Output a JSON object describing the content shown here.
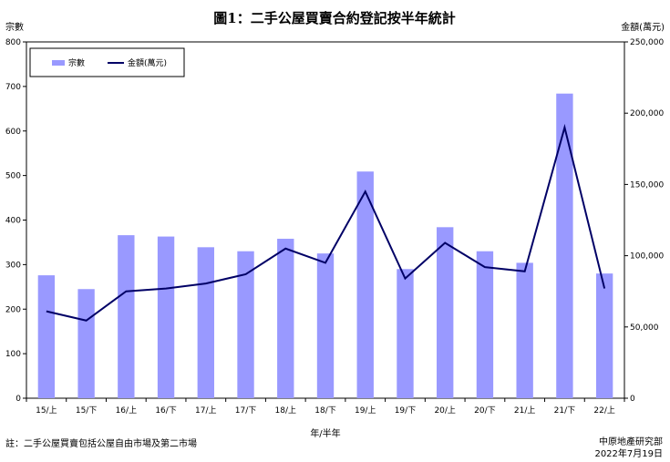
{
  "chart_data": {
    "type": "bar",
    "title": "圖1：二手公屋買賣合約登記按半年統計",
    "categories": [
      "15/上",
      "15/下",
      "16/上",
      "16/下",
      "17/上",
      "17/下",
      "18/上",
      "18/下",
      "19/上",
      "19/下",
      "20/上",
      "20/下",
      "21/上",
      "21/下",
      "22/上"
    ],
    "series": [
      {
        "name": "宗數",
        "type": "bar",
        "axis": "left",
        "color": "#9999ff",
        "values": [
          276,
          245,
          366,
          363,
          339,
          330,
          358,
          325,
          509,
          290,
          384,
          330,
          304,
          684,
          280
        ]
      },
      {
        "name": "金額(萬元)",
        "type": "line",
        "axis": "right",
        "color": "#000066",
        "values": [
          61000,
          54500,
          75000,
          77000,
          80500,
          87000,
          105000,
          95000,
          145000,
          84000,
          109000,
          92000,
          89000,
          190000,
          77000
        ]
      }
    ],
    "ylabel_left": "宗數",
    "ylabel_right": "金額(萬元)",
    "xlabel": "年/半年",
    "ylim_left": [
      0,
      800
    ],
    "ylim_right": [
      0,
      250000
    ],
    "yticks_left": [
      "0",
      "100",
      "200",
      "300",
      "400",
      "500",
      "600",
      "700",
      "800"
    ],
    "yticks_right": [
      "0",
      "50,000",
      "100,000",
      "150,000",
      "200,000",
      "250,000"
    ],
    "grid": false,
    "legend_position": "top-left"
  },
  "footer": {
    "note": "註：二手公屋買賣包括公屋自由市場及第二市場",
    "source": "中原地產研究部",
    "date": "2022年7月19日"
  }
}
